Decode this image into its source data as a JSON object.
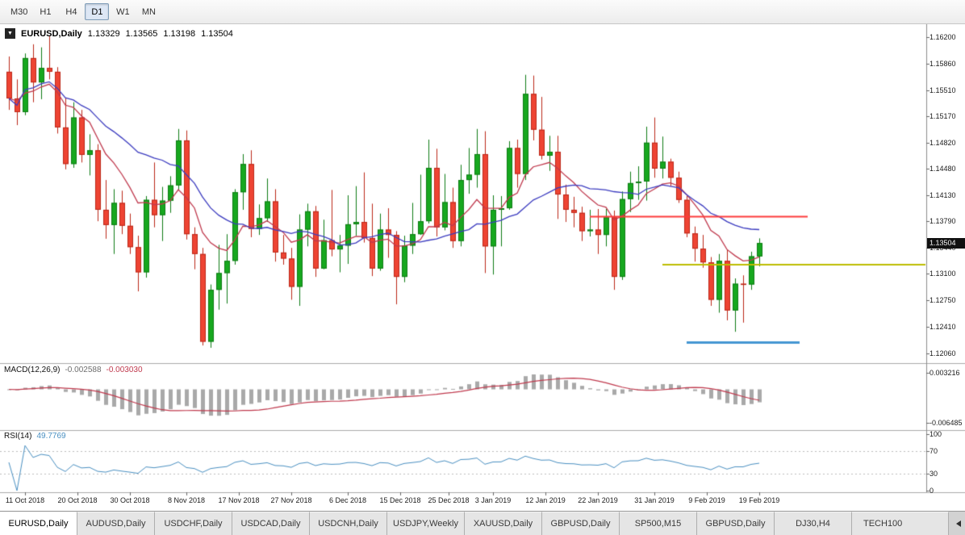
{
  "toolbar": {
    "timeframes": [
      {
        "label": "M30",
        "active": false
      },
      {
        "label": "H1",
        "active": false
      },
      {
        "label": "H4",
        "active": false
      },
      {
        "label": "D1",
        "active": true
      },
      {
        "label": "W1",
        "active": false
      },
      {
        "label": "MN",
        "active": false
      }
    ]
  },
  "chart_title": {
    "symbol": "EURUSD,Daily",
    "open": "1.13329",
    "high": "1.13565",
    "low": "1.13198",
    "close": "1.13504"
  },
  "indicator_labels": {
    "macd": {
      "name": "MACD(12,26,9)",
      "main": "-0.002588",
      "signal": "-0.003030"
    },
    "rsi": {
      "name": "RSI(14)",
      "value": "49.7769"
    }
  },
  "current_price": "1.13504",
  "chart_data": {
    "type": "candlestick",
    "symbol": "EURUSD",
    "timeframe": "Daily",
    "y_range": [
      1.1195,
      1.1631
    ],
    "price_axis_labels": [
      "1.16200",
      "1.15860",
      "1.15510",
      "1.15170",
      "1.14820",
      "1.14480",
      "1.14130",
      "1.13790",
      "1.13440",
      "1.13100",
      "1.12750",
      "1.12410",
      "1.12060"
    ],
    "date_axis_labels": [
      [
        2,
        "11 Oct 2018"
      ],
      [
        8.5,
        "20 Oct 2018"
      ],
      [
        15,
        "30 Oct 2018"
      ],
      [
        22,
        "8 Nov 2018"
      ],
      [
        28.5,
        "17 Nov 2018"
      ],
      [
        35,
        "27 Nov 2018"
      ],
      [
        42,
        "6 Dec 2018"
      ],
      [
        48.5,
        "15 Dec 2018"
      ],
      [
        54.5,
        "25 Dec 2018"
      ],
      [
        60,
        "3 Jan 2019"
      ],
      [
        66.5,
        "12 Jan 2019"
      ],
      [
        73,
        "22 Jan 2019"
      ],
      [
        80,
        "31 Jan 2019"
      ],
      [
        86.5,
        "9 Feb 2019"
      ],
      [
        93,
        "19 Feb 2019"
      ]
    ],
    "candles": [
      [
        1.1575,
        1.1595,
        1.1525,
        1.154
      ],
      [
        1.154,
        1.1565,
        1.1505,
        1.1522
      ],
      [
        1.1522,
        1.1599,
        1.1518,
        1.1593
      ],
      [
        1.1593,
        1.1611,
        1.1535,
        1.1561
      ],
      [
        1.1561,
        1.1607,
        1.1539,
        1.158
      ],
      [
        1.158,
        1.1622,
        1.1565,
        1.1575
      ],
      [
        1.1575,
        1.1581,
        1.1494,
        1.1502
      ],
      [
        1.1502,
        1.1541,
        1.1447,
        1.1454
      ],
      [
        1.1454,
        1.1535,
        1.1449,
        1.1515
      ],
      [
        1.1515,
        1.1525,
        1.1456,
        1.1466
      ],
      [
        1.1466,
        1.1493,
        1.1439,
        1.1472
      ],
      [
        1.1472,
        1.148,
        1.1379,
        1.1394
      ],
      [
        1.1394,
        1.1433,
        1.1356,
        1.1374
      ],
      [
        1.1374,
        1.1421,
        1.1336,
        1.1403
      ],
      [
        1.1403,
        1.1419,
        1.1362,
        1.1373
      ],
      [
        1.1373,
        1.1389,
        1.1336,
        1.1345
      ],
      [
        1.1345,
        1.136,
        1.1287,
        1.1312
      ],
      [
        1.1312,
        1.1412,
        1.1305,
        1.1407
      ],
      [
        1.1407,
        1.1456,
        1.1371,
        1.1387
      ],
      [
        1.1387,
        1.1424,
        1.1353,
        1.1406
      ],
      [
        1.1406,
        1.1438,
        1.139,
        1.1426
      ],
      [
        1.1426,
        1.15,
        1.142,
        1.1485
      ],
      [
        1.1485,
        1.1498,
        1.1355,
        1.1362
      ],
      [
        1.1362,
        1.1371,
        1.1316,
        1.1336
      ],
      [
        1.1336,
        1.1344,
        1.1216,
        1.1221
      ],
      [
        1.1221,
        1.1296,
        1.1213,
        1.1289
      ],
      [
        1.1289,
        1.1348,
        1.1263,
        1.1311
      ],
      [
        1.1311,
        1.1362,
        1.1271,
        1.1327
      ],
      [
        1.1327,
        1.1421,
        1.1322,
        1.1417
      ],
      [
        1.1417,
        1.1467,
        1.1394,
        1.1454
      ],
      [
        1.1454,
        1.1472,
        1.1358,
        1.1369
      ],
      [
        1.1369,
        1.1401,
        1.1361,
        1.1383
      ],
      [
        1.1383,
        1.1435,
        1.1378,
        1.1405
      ],
      [
        1.1405,
        1.1421,
        1.1326,
        1.1338
      ],
      [
        1.1338,
        1.1361,
        1.1322,
        1.133
      ],
      [
        1.133,
        1.1344,
        1.1276,
        1.1293
      ],
      [
        1.1293,
        1.1388,
        1.1268,
        1.1368
      ],
      [
        1.1368,
        1.1402,
        1.1346,
        1.1392
      ],
      [
        1.1392,
        1.1399,
        1.1306,
        1.1317
      ],
      [
        1.1317,
        1.1381,
        1.1316,
        1.1354
      ],
      [
        1.1354,
        1.142,
        1.1333,
        1.1342
      ],
      [
        1.1342,
        1.1361,
        1.1312,
        1.1347
      ],
      [
        1.1347,
        1.1413,
        1.1323,
        1.1375
      ],
      [
        1.1375,
        1.1425,
        1.136,
        1.1378
      ],
      [
        1.1378,
        1.1443,
        1.1351,
        1.1357
      ],
      [
        1.1357,
        1.1402,
        1.1307,
        1.1317
      ],
      [
        1.1317,
        1.1389,
        1.1314,
        1.1368
      ],
      [
        1.1368,
        1.1396,
        1.1331,
        1.1361
      ],
      [
        1.1361,
        1.1366,
        1.127,
        1.1306
      ],
      [
        1.1306,
        1.136,
        1.1299,
        1.1347
      ],
      [
        1.1347,
        1.1403,
        1.1336,
        1.1362
      ],
      [
        1.1362,
        1.144,
        1.1361,
        1.1379
      ],
      [
        1.1379,
        1.1486,
        1.1376,
        1.1449
      ],
      [
        1.1449,
        1.1474,
        1.1359,
        1.1371
      ],
      [
        1.1371,
        1.1441,
        1.1367,
        1.1404
      ],
      [
        1.1404,
        1.1423,
        1.1344,
        1.1353
      ],
      [
        1.1353,
        1.1453,
        1.1346,
        1.1433
      ],
      [
        1.1433,
        1.1475,
        1.1415,
        1.144
      ],
      [
        1.144,
        1.15,
        1.1423,
        1.1467
      ],
      [
        1.1467,
        1.1497,
        1.1311,
        1.1346
      ],
      [
        1.1346,
        1.1413,
        1.1309,
        1.1394
      ],
      [
        1.1394,
        1.1412,
        1.1346,
        1.1396
      ],
      [
        1.1396,
        1.1484,
        1.1394,
        1.1475
      ],
      [
        1.1475,
        1.1486,
        1.1423,
        1.1441
      ],
      [
        1.1441,
        1.1571,
        1.1433,
        1.1546
      ],
      [
        1.1546,
        1.157,
        1.1485,
        1.1499
      ],
      [
        1.1499,
        1.1542,
        1.146,
        1.1465
      ],
      [
        1.1465,
        1.1491,
        1.1445,
        1.147
      ],
      [
        1.147,
        1.1491,
        1.1382,
        1.1414
      ],
      [
        1.1414,
        1.1427,
        1.1378,
        1.1394
      ],
      [
        1.1394,
        1.1411,
        1.1371,
        1.139
      ],
      [
        1.139,
        1.1398,
        1.1353,
        1.1366
      ],
      [
        1.1366,
        1.1394,
        1.1359,
        1.1368
      ],
      [
        1.1368,
        1.1395,
        1.1336,
        1.1361
      ],
      [
        1.1361,
        1.1395,
        1.1346,
        1.1384
      ],
      [
        1.1384,
        1.1393,
        1.1289,
        1.1306
      ],
      [
        1.1306,
        1.1418,
        1.1302,
        1.1408
      ],
      [
        1.1408,
        1.1444,
        1.1391,
        1.1429
      ],
      [
        1.1429,
        1.1451,
        1.1407,
        1.1431
      ],
      [
        1.1431,
        1.1503,
        1.1406,
        1.1482
      ],
      [
        1.1482,
        1.1515,
        1.1436,
        1.1448
      ],
      [
        1.1448,
        1.149,
        1.1435,
        1.1457
      ],
      [
        1.1457,
        1.1461,
        1.1425,
        1.1436
      ],
      [
        1.1436,
        1.1444,
        1.1403,
        1.1407
      ],
      [
        1.1407,
        1.1412,
        1.1358,
        1.1363
      ],
      [
        1.1363,
        1.1372,
        1.1326,
        1.1343
      ],
      [
        1.1343,
        1.1361,
        1.1318,
        1.1325
      ],
      [
        1.1325,
        1.1332,
        1.1268,
        1.1276
      ],
      [
        1.1276,
        1.1336,
        1.1259,
        1.1327
      ],
      [
        1.1327,
        1.1342,
        1.1249,
        1.1262
      ],
      [
        1.1262,
        1.1304,
        1.1234,
        1.1297
      ],
      [
        1.1297,
        1.1308,
        1.1246,
        1.1296
      ],
      [
        1.1296,
        1.1339,
        1.1289,
        1.1333
      ],
      [
        1.13329,
        1.13565,
        1.13198,
        1.13504
      ]
    ],
    "moving_averages": [
      {
        "name": "ma-fast",
        "method": "ema",
        "period": 10,
        "color": "#c03a4e"
      },
      {
        "name": "ma-slow",
        "method": "sma",
        "period": 20,
        "color": "#3c3cc0"
      }
    ],
    "hlines": [
      {
        "name": "resistance-hline",
        "price": 1.1385,
        "color": "#fd3b3b",
        "width": 2,
        "from_index": 72,
        "to_index": 99
      },
      {
        "name": "mid-support-hline",
        "price": 1.1322,
        "color": "#bdbd00",
        "width": 2,
        "from_index": 81,
        "to_index": "edge"
      },
      {
        "name": "lower-support-hline",
        "price": 1.122,
        "color": "#4596d2",
        "width": 3,
        "from_index": 84,
        "to_index": 98
      }
    ],
    "macd": {
      "params": [
        12,
        26,
        9
      ],
      "range": [
        0.0045,
        -0.0075
      ],
      "axis_labels": [
        "0.003216",
        "-0.006485"
      ],
      "histogram_color": "#a9a9a9",
      "signal_color": "#c03a4e"
    },
    "rsi": {
      "period": 14,
      "range": [
        0,
        100
      ],
      "axis_labels": [
        "100",
        "70",
        "30",
        "0"
      ],
      "levels": [
        70,
        30
      ],
      "color": "#4a90c2"
    },
    "candle_colors": {
      "bull_fill": "#17a81f",
      "bull_border": "#0e7c14",
      "bear_fill": "#ee4433",
      "bear_border": "#bc2718"
    }
  },
  "tabs": {
    "items": [
      {
        "label": "EURUSD,Daily",
        "active": true
      },
      {
        "label": "AUDUSD,Daily",
        "active": false
      },
      {
        "label": "USDCHF,Daily",
        "active": false
      },
      {
        "label": "USDCAD,Daily",
        "active": false
      },
      {
        "label": "USDCNH,Daily",
        "active": false
      },
      {
        "label": "USDJPY,Weekly",
        "active": false
      },
      {
        "label": "XAUUSD,Daily",
        "active": false
      },
      {
        "label": "GBPUSD,Daily",
        "active": false
      },
      {
        "label": "SP500,M15",
        "active": false
      },
      {
        "label": "GBPUSD,Daily",
        "active": false
      },
      {
        "label": "DJ30,H4",
        "active": false
      },
      {
        "label": "TECH100",
        "active": false
      }
    ]
  }
}
